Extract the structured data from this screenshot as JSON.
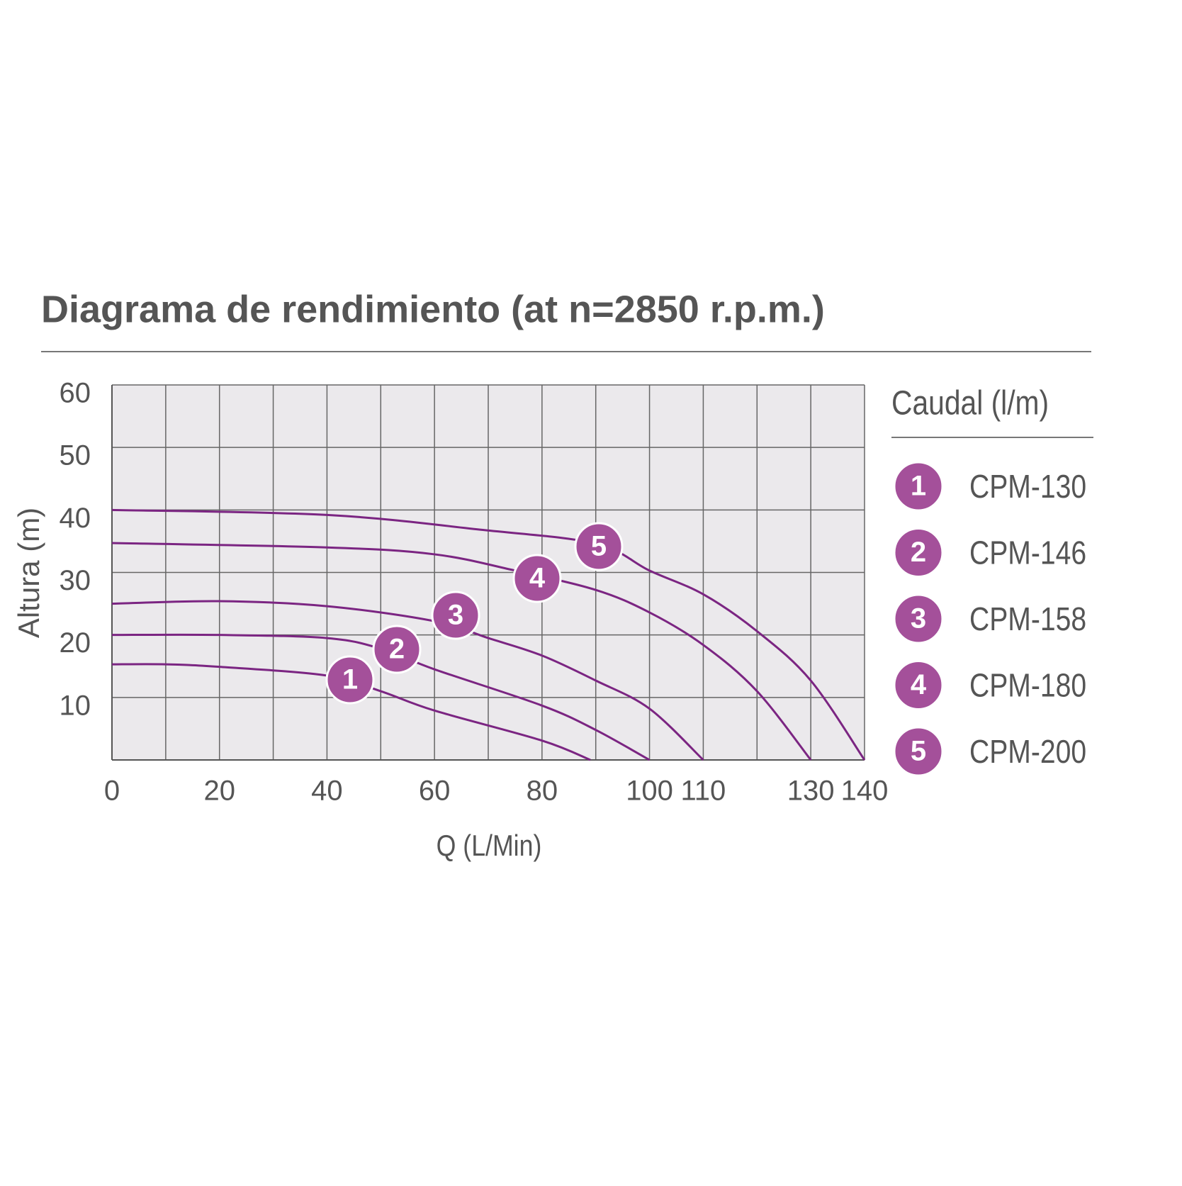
{
  "chart_data": {
    "type": "line",
    "title": "Diagrama de rendimiento (at n=2850 r.p.m.)",
    "x_label": "Q (L/Min)",
    "y_label": "Altura (m)",
    "legend_title": "Caudal (l/m)",
    "xlim": [
      0,
      140
    ],
    "ylim": [
      0,
      60
    ],
    "xticks": [
      0,
      20,
      40,
      60,
      80,
      100,
      110,
      130,
      140
    ],
    "x_grid_lines": [
      0,
      10,
      20,
      30,
      40,
      50,
      60,
      70,
      80,
      90,
      100,
      110,
      120,
      130,
      140
    ],
    "yticks": [
      10,
      20,
      30,
      40,
      50,
      60
    ],
    "grid": true,
    "series": [
      {
        "name": "CPM-130",
        "badge": "1",
        "color": "#7b2582",
        "x": [
          0,
          10,
          20,
          40,
          50,
          60,
          80,
          89
        ],
        "values": [
          15.3,
          15.3,
          14.9,
          13.5,
          11,
          7.9,
          3.1,
          0
        ]
      },
      {
        "name": "CPM-146",
        "badge": "2",
        "color": "#7b2582",
        "x": [
          0,
          20,
          40,
          50,
          60,
          80,
          90,
          100
        ],
        "values": [
          20,
          20,
          19.5,
          17.8,
          14.5,
          8.7,
          4.8,
          0
        ]
      },
      {
        "name": "CPM-158",
        "badge": "3",
        "color": "#7b2582",
        "x": [
          0,
          20,
          40,
          60,
          70,
          80,
          90,
          100,
          110
        ],
        "values": [
          25,
          25.4,
          24.6,
          22.2,
          19.5,
          16.7,
          12.7,
          8.2,
          0
        ]
      },
      {
        "name": "CPM-180",
        "badge": "4",
        "color": "#7b2582",
        "x": [
          0,
          40,
          60,
          75,
          90,
          100,
          110,
          120,
          130
        ],
        "values": [
          34.7,
          34,
          32.9,
          30.3,
          27.2,
          23.6,
          18.4,
          11,
          0
        ]
      },
      {
        "name": "CPM-200",
        "badge": "5",
        "color": "#7b2582",
        "x": [
          0,
          40,
          69,
          90,
          100,
          110,
          120,
          130,
          140
        ],
        "values": [
          40,
          39.2,
          36.8,
          34.6,
          30.3,
          26.5,
          20.6,
          12.7,
          0
        ]
      }
    ],
    "badge_color": "#a4509a"
  }
}
